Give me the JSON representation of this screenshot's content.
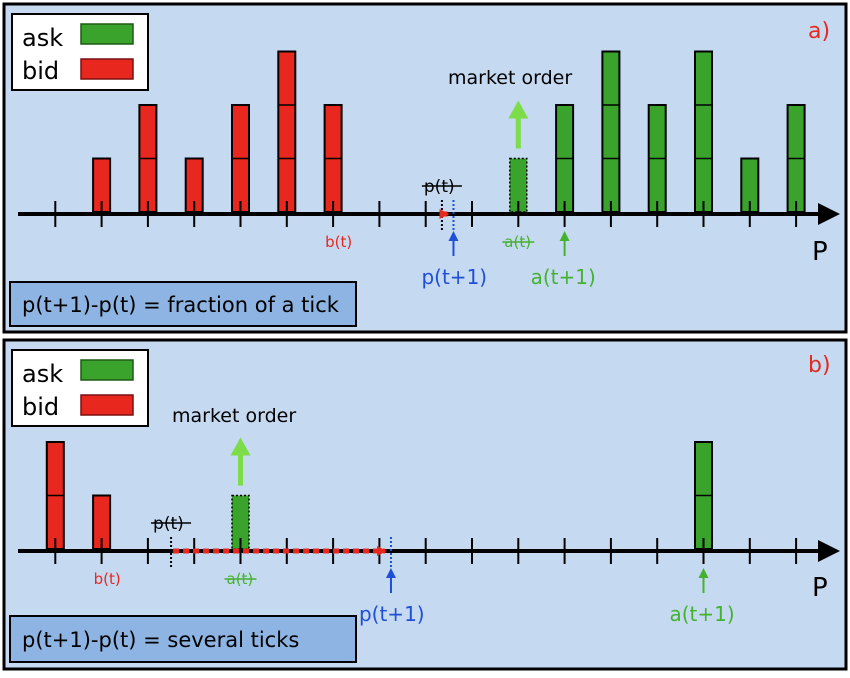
{
  "colors": {
    "background": "#c5d9f1",
    "ask": "#3aa32c",
    "bid": "#e8281e",
    "axis": "#000000",
    "blue": "#1f4fd6",
    "green_label": "#44b22f",
    "red_label": "#e8281e",
    "arrow_green": "#7ddc4a",
    "info_box": "#8db4e2"
  },
  "legend": {
    "ask_label": "ask",
    "bid_label": "bid"
  },
  "panels": [
    {
      "id": "a",
      "corner_label": "a)",
      "market_order_label": "market order",
      "axis_label": "P",
      "price_label": "p(t)",
      "bid_label": "b(t)",
      "ask_label": "a(t)",
      "new_price_label": "p(t+1)",
      "new_ask_label": "a(t+1)",
      "info_text": "p(t+1)-p(t) = fraction of a tick",
      "bid_bars": [
        {
          "tick": 2,
          "depth": 1
        },
        {
          "tick": 3,
          "depth": 2
        },
        {
          "tick": 4,
          "depth": 1
        },
        {
          "tick": 5,
          "depth": 2
        },
        {
          "tick": 6,
          "depth": 3
        },
        {
          "tick": 7,
          "depth": 2
        }
      ],
      "ask_bars": [
        {
          "tick": 12,
          "depth": 2
        },
        {
          "tick": 13,
          "depth": 3
        },
        {
          "tick": 14,
          "depth": 2
        },
        {
          "tick": 15,
          "depth": 3
        },
        {
          "tick": 16,
          "depth": 1
        },
        {
          "tick": 17,
          "depth": 2
        }
      ],
      "removed_ask": {
        "tick": 11,
        "depth": 1
      },
      "bid_tick": 7,
      "ask_tick": 11,
      "new_ask_tick": 12,
      "price_tick": 9.35,
      "new_price_tick": 9.6
    },
    {
      "id": "b",
      "corner_label": "b)",
      "market_order_label": "market order",
      "axis_label": "P",
      "price_label": "p(t)",
      "bid_label": "b(t)",
      "ask_label": "a(t)",
      "new_price_label": "p(t+1)",
      "new_ask_label": "a(t+1)",
      "info_text": "p(t+1)-p(t) = several ticks",
      "bid_bars": [
        {
          "tick": 1,
          "depth": 2
        },
        {
          "tick": 2,
          "depth": 1
        }
      ],
      "ask_bars": [
        {
          "tick": 15,
          "depth": 2
        }
      ],
      "removed_ask": {
        "tick": 5,
        "depth": 1
      },
      "bid_tick": 2,
      "ask_tick": 5,
      "new_ask_tick": 15,
      "price_tick": 3.5,
      "new_price_tick": 8.25
    }
  ]
}
